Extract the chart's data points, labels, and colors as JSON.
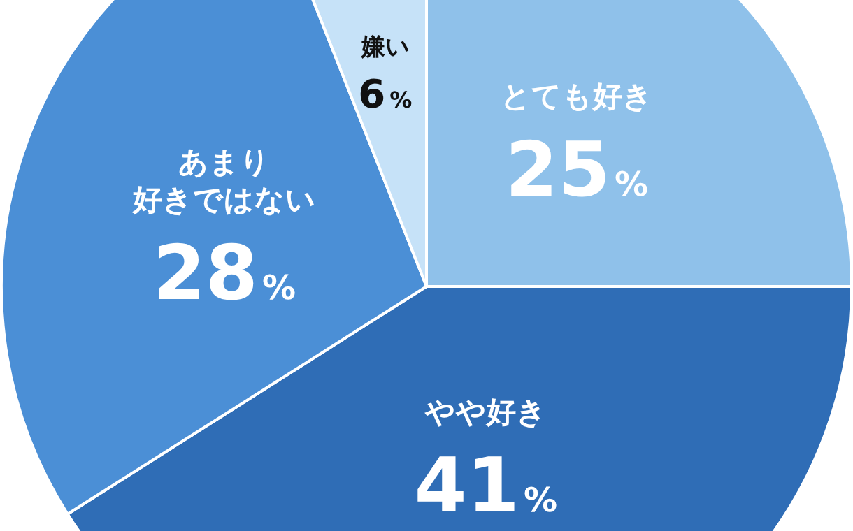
{
  "chart_data": {
    "type": "pie",
    "categories": [
      "とても好き",
      "やや好き",
      "あまり好きではない",
      "嫌い"
    ],
    "values": [
      25,
      41,
      28,
      6
    ],
    "value_labels": [
      "25%",
      "41%",
      "28%",
      "6%"
    ],
    "colors": [
      "#8fc1ea",
      "#2f6db6",
      "#4b8fd6",
      "#c6e2f8"
    ]
  }
}
